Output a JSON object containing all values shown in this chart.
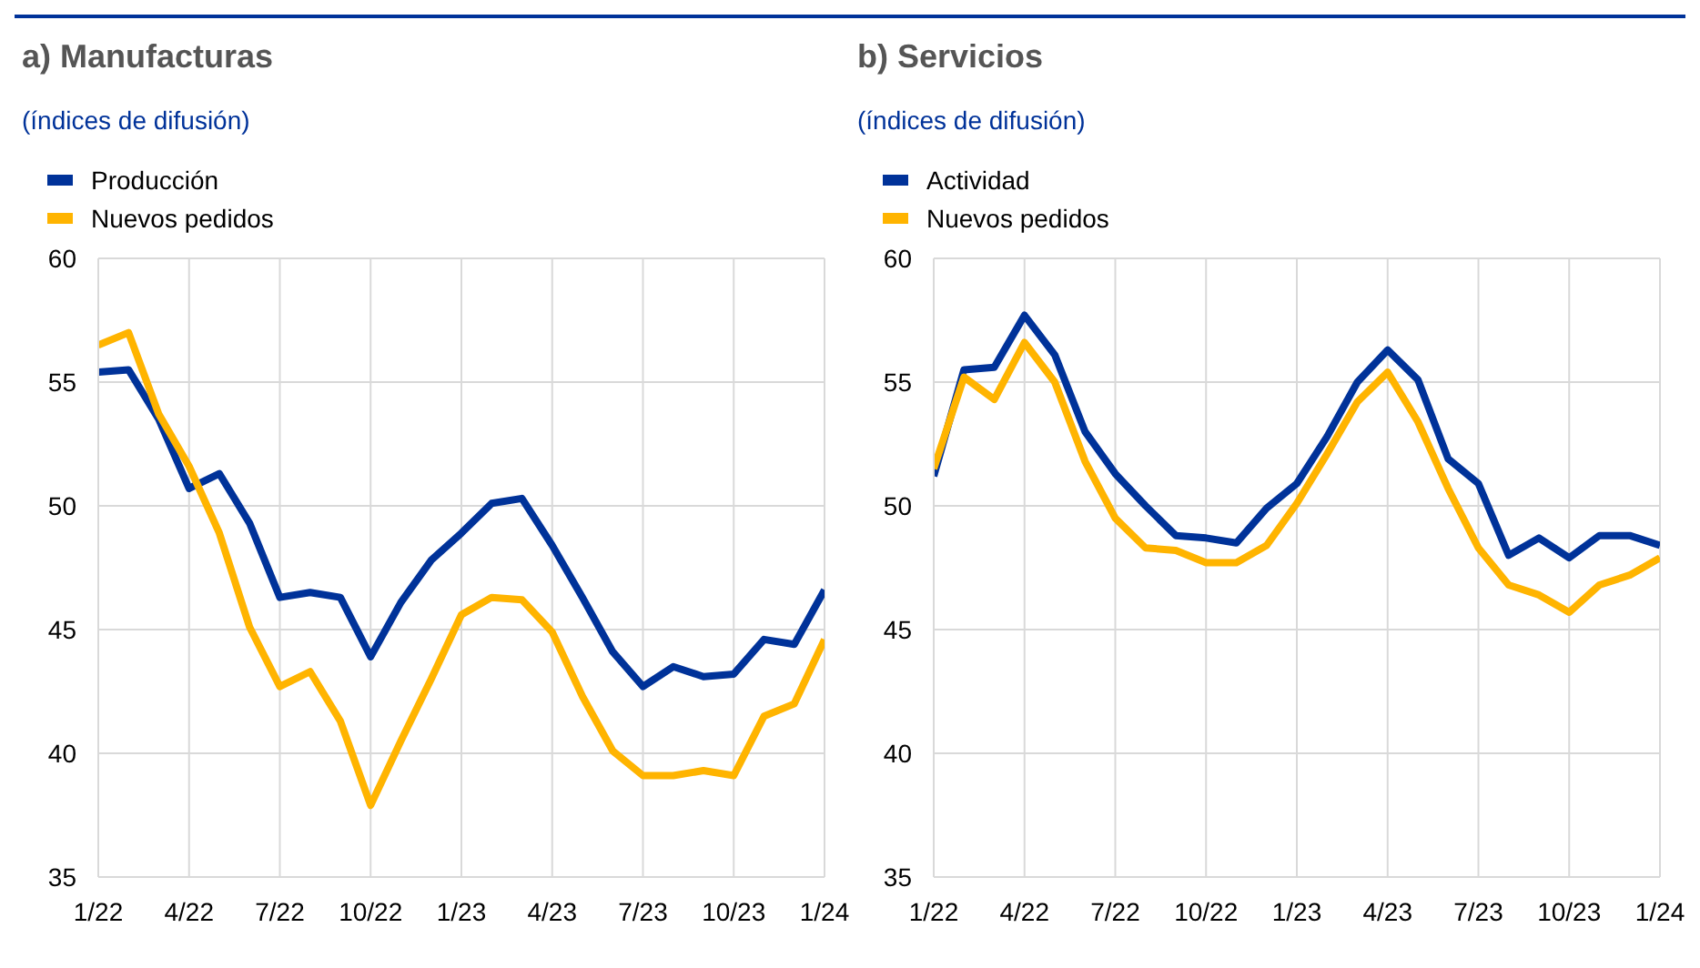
{
  "chart_data": [
    {
      "type": "line",
      "title": "a) Manufacturas",
      "subtitle": "(índices de difusión)",
      "categories": [
        "1/22",
        null,
        null,
        "4/22",
        null,
        null,
        "7/22",
        null,
        null,
        "10/22",
        null,
        null,
        "1/23",
        null,
        null,
        "4/23",
        null,
        null,
        "7/23",
        null,
        null,
        "10/23",
        null,
        null,
        "1/24"
      ],
      "series": [
        {
          "name": "Producción",
          "color": "#003299",
          "values": [
            55.4,
            55.5,
            53.5,
            50.7,
            51.3,
            49.3,
            46.3,
            46.5,
            46.3,
            43.9,
            46.1,
            47.8,
            48.9,
            50.1,
            50.3,
            48.4,
            46.3,
            44.1,
            42.7,
            43.5,
            43.1,
            43.2,
            44.6,
            44.4,
            46.6
          ]
        },
        {
          "name": "Nuevos pedidos",
          "color": "#ffb400",
          "values": [
            56.5,
            57.0,
            53.7,
            51.6,
            48.9,
            45.1,
            42.7,
            43.3,
            41.3,
            37.9,
            40.5,
            43.0,
            45.6,
            46.3,
            46.2,
            44.9,
            42.3,
            40.1,
            39.1,
            39.1,
            39.3,
            39.1,
            41.5,
            42.0,
            44.6
          ]
        }
      ],
      "ylim": [
        35,
        60
      ],
      "yticks": [
        35,
        40,
        45,
        50,
        55,
        60
      ],
      "grid": true,
      "legend": "top left",
      "line_style": "solid",
      "marker": "none"
    },
    {
      "type": "line",
      "title": "b) Servicios",
      "subtitle": "(índices de difusión)",
      "categories": [
        "1/22",
        null,
        null,
        "4/22",
        null,
        null,
        "7/22",
        null,
        null,
        "10/22",
        null,
        null,
        "1/23",
        null,
        null,
        "4/23",
        null,
        null,
        "7/23",
        null,
        null,
        "10/23",
        null,
        null,
        "1/24"
      ],
      "series": [
        {
          "name": "Actividad",
          "color": "#003299",
          "values": [
            51.2,
            55.5,
            55.6,
            57.7,
            56.1,
            53.0,
            51.3,
            50.0,
            48.8,
            48.7,
            48.5,
            49.9,
            50.9,
            52.8,
            55.0,
            56.3,
            55.1,
            51.9,
            50.9,
            48.0,
            48.7,
            47.9,
            48.8,
            48.8,
            48.4
          ]
        },
        {
          "name": "Nuevos pedidos",
          "color": "#ffb400",
          "values": [
            51.5,
            55.2,
            54.3,
            56.6,
            55.0,
            51.8,
            49.5,
            48.3,
            48.2,
            47.7,
            47.7,
            48.4,
            50.1,
            52.1,
            54.2,
            55.4,
            53.4,
            50.7,
            48.3,
            46.8,
            46.4,
            45.7,
            46.8,
            47.2,
            47.9
          ]
        }
      ],
      "ylim": [
        35,
        60
      ],
      "yticks": [
        35,
        40,
        45,
        50,
        55,
        60
      ],
      "grid": true,
      "legend": "top left",
      "line_style": "solid",
      "marker": "none"
    }
  ]
}
